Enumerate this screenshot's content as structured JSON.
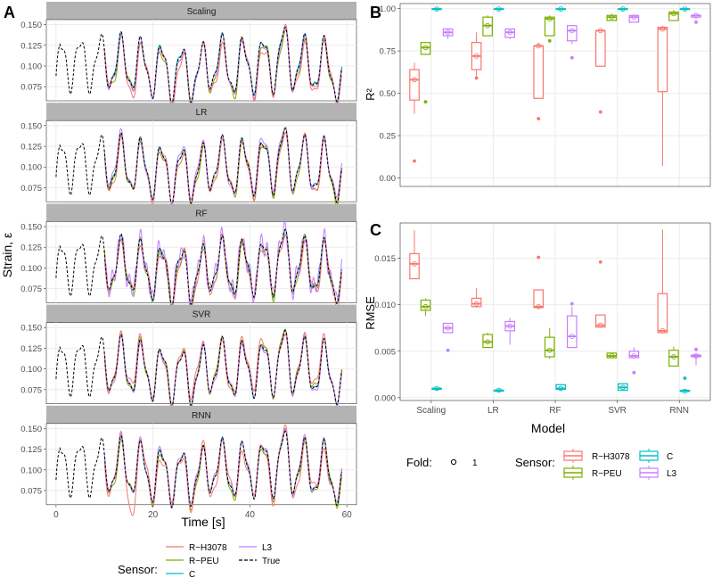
{
  "colors": {
    "rh3078": "#F8766D",
    "rpeu": "#7CAE00",
    "c": "#00BFC4",
    "l3": "#C77CFF",
    "true": "#000000",
    "strip_bg": "#B3B3B3",
    "grid": "#EBEBEB",
    "border": "#333333"
  },
  "chart_data": [
    {
      "panel_label": "A",
      "type": "line",
      "facets": [
        "Scaling",
        "LR",
        "RF",
        "SVR",
        "RNN"
      ],
      "xlabel": "Time [s]",
      "ylabel": "Strain, ε",
      "xlim": [
        -2,
        62
      ],
      "ylim": [
        0.058,
        0.156
      ],
      "x_ticks": [
        "0",
        "20",
        "40",
        "60"
      ],
      "x_tick_values": [
        0,
        20,
        40,
        60
      ],
      "y_ticks": [
        "0.075",
        "0.100",
        "0.125",
        "0.150"
      ],
      "y_tick_values": [
        0.075,
        0.1,
        0.125,
        0.15
      ],
      "true_range": [
        0,
        59
      ],
      "prediction_range": [
        10,
        59
      ],
      "series_names": [
        "R−H3078",
        "R−PEU",
        "C",
        "L3",
        "True"
      ]
    },
    {
      "panel_label": "B",
      "type": "box",
      "xlabel": "",
      "ylabel": "R²",
      "ylim": [
        -0.05,
        1.03
      ],
      "y_ticks": [
        "0.00",
        "0.25",
        "0.50",
        "0.75",
        "1.00"
      ],
      "y_tick_values": [
        0.0,
        0.25,
        0.5,
        0.75,
        1.0
      ],
      "categories": [
        "Scaling",
        "LR",
        "RF",
        "SVR",
        "RNN"
      ],
      "series": [
        {
          "name": "R−H3078",
          "boxes": [
            {
              "min": 0.38,
              "q1": 0.46,
              "median": 0.58,
              "q3": 0.64,
              "max": 0.68,
              "outliers": [
                0.1
              ]
            },
            {
              "min": 0.6,
              "q1": 0.64,
              "median": 0.72,
              "q3": 0.8,
              "max": 0.86,
              "outliers": [
                0.59
              ]
            },
            {
              "min": 0.47,
              "q1": 0.47,
              "median": 0.78,
              "q3": 0.78,
              "max": 0.8,
              "outliers": [
                0.35
              ]
            },
            {
              "min": 0.66,
              "q1": 0.66,
              "median": 0.87,
              "q3": 0.87,
              "max": 0.87,
              "outliers": [
                0.39
              ]
            },
            {
              "min": 0.07,
              "q1": 0.51,
              "median": 0.88,
              "q3": 0.89,
              "max": 0.9,
              "outliers": []
            }
          ]
        },
        {
          "name": "R−PEU",
          "boxes": [
            {
              "min": 0.73,
              "q1": 0.73,
              "median": 0.77,
              "q3": 0.8,
              "max": 0.8,
              "outliers": [
                0.45
              ]
            },
            {
              "min": 0.84,
              "q1": 0.84,
              "median": 0.9,
              "q3": 0.95,
              "max": 0.96,
              "outliers": []
            },
            {
              "min": 0.84,
              "q1": 0.84,
              "median": 0.94,
              "q3": 0.95,
              "max": 0.96,
              "outliers": [
                0.81
              ]
            },
            {
              "min": 0.93,
              "q1": 0.93,
              "median": 0.95,
              "q3": 0.96,
              "max": 0.97,
              "outliers": []
            },
            {
              "min": 0.93,
              "q1": 0.93,
              "median": 0.97,
              "q3": 0.98,
              "max": 0.99,
              "outliers": []
            }
          ]
        },
        {
          "name": "C",
          "boxes": [
            {
              "min": 0.99,
              "q1": 0.995,
              "median": 0.998,
              "q3": 0.999,
              "max": 1.0,
              "outliers": []
            },
            {
              "min": 0.99,
              "q1": 0.995,
              "median": 0.998,
              "q3": 0.999,
              "max": 1.0,
              "outliers": []
            },
            {
              "min": 0.99,
              "q1": 0.995,
              "median": 0.998,
              "q3": 0.999,
              "max": 1.0,
              "outliers": []
            },
            {
              "min": 0.99,
              "q1": 0.995,
              "median": 0.998,
              "q3": 0.999,
              "max": 1.0,
              "outliers": []
            },
            {
              "min": 0.99,
              "q1": 0.995,
              "median": 0.998,
              "q3": 0.999,
              "max": 1.0,
              "outliers": []
            }
          ]
        },
        {
          "name": "L3",
          "boxes": [
            {
              "min": 0.82,
              "q1": 0.84,
              "median": 0.86,
              "q3": 0.88,
              "max": 0.88,
              "outliers": []
            },
            {
              "min": 0.82,
              "q1": 0.83,
              "median": 0.86,
              "q3": 0.88,
              "max": 0.88,
              "outliers": []
            },
            {
              "min": 0.79,
              "q1": 0.81,
              "median": 0.87,
              "q3": 0.9,
              "max": 0.9,
              "outliers": [
                0.71
              ]
            },
            {
              "min": 0.92,
              "q1": 0.92,
              "median": 0.95,
              "q3": 0.96,
              "max": 0.96,
              "outliers": []
            },
            {
              "min": 0.94,
              "q1": 0.95,
              "median": 0.96,
              "q3": 0.96,
              "max": 0.96,
              "outliers": [
                0.92
              ]
            }
          ]
        }
      ]
    },
    {
      "panel_label": "C",
      "type": "box",
      "xlabel": "Model",
      "ylabel": "RMSE",
      "ylim": [
        -0.0003,
        0.0188
      ],
      "y_ticks": [
        "0.000",
        "0.005",
        "0.010",
        "0.015"
      ],
      "y_tick_values": [
        0.0,
        0.005,
        0.01,
        0.015
      ],
      "categories": [
        "Scaling",
        "LR",
        "RF",
        "SVR",
        "RNN"
      ],
      "series": [
        {
          "name": "R−H3078",
          "boxes": [
            {
              "min": 0.0128,
              "q1": 0.0128,
              "median": 0.0144,
              "q3": 0.0155,
              "max": 0.018,
              "outliers": []
            },
            {
              "min": 0.0097,
              "q1": 0.0098,
              "median": 0.0101,
              "q3": 0.0107,
              "max": 0.0118,
              "outliers": []
            },
            {
              "min": 0.0097,
              "q1": 0.0097,
              "median": 0.0098,
              "q3": 0.0116,
              "max": 0.0116,
              "outliers": [
                0.0151
              ]
            },
            {
              "min": 0.0076,
              "q1": 0.0076,
              "median": 0.0078,
              "q3": 0.0089,
              "max": 0.0089,
              "outliers": [
                0.0146
              ]
            },
            {
              "min": 0.0069,
              "q1": 0.007,
              "median": 0.0072,
              "q3": 0.0112,
              "max": 0.0181,
              "outliers": []
            }
          ]
        },
        {
          "name": "R−PEU",
          "boxes": [
            {
              "min": 0.0088,
              "q1": 0.0094,
              "median": 0.0098,
              "q3": 0.0105,
              "max": 0.0107,
              "outliers": []
            },
            {
              "min": 0.0054,
              "q1": 0.0054,
              "median": 0.006,
              "q3": 0.0068,
              "max": 0.007,
              "outliers": []
            },
            {
              "min": 0.0042,
              "q1": 0.0044,
              "median": 0.0051,
              "q3": 0.0065,
              "max": 0.0075,
              "outliers": []
            },
            {
              "min": 0.0043,
              "q1": 0.0043,
              "median": 0.0045,
              "q3": 0.0048,
              "max": 0.0048,
              "outliers": []
            },
            {
              "min": 0.0034,
              "q1": 0.0034,
              "median": 0.0044,
              "q3": 0.0051,
              "max": 0.0055,
              "outliers": []
            }
          ]
        },
        {
          "name": "C",
          "boxes": [
            {
              "min": 0.0008,
              "q1": 0.0009,
              "median": 0.001,
              "q3": 0.001,
              "max": 0.0011,
              "outliers": []
            },
            {
              "min": 0.0007,
              "q1": 0.0007,
              "median": 0.0008,
              "q3": 0.0008,
              "max": 0.0009,
              "outliers": []
            },
            {
              "min": 0.0008,
              "q1": 0.0009,
              "median": 0.001,
              "q3": 0.0014,
              "max": 0.0014,
              "outliers": []
            },
            {
              "min": 0.0008,
              "q1": 0.0008,
              "median": 0.0011,
              "q3": 0.0015,
              "max": 0.0015,
              "outliers": []
            },
            {
              "min": 0.0007,
              "q1": 0.0007,
              "median": 0.0007,
              "q3": 0.0008,
              "max": 0.0008,
              "outliers": [
                0.0021
              ]
            }
          ]
        },
        {
          "name": "L3",
          "boxes": [
            {
              "min": 0.007,
              "q1": 0.007,
              "median": 0.0075,
              "q3": 0.008,
              "max": 0.008,
              "outliers": [
                0.0051
              ]
            },
            {
              "min": 0.0057,
              "q1": 0.0072,
              "median": 0.0077,
              "q3": 0.0082,
              "max": 0.0086,
              "outliers": []
            },
            {
              "min": 0.0054,
              "q1": 0.0054,
              "median": 0.0066,
              "q3": 0.0088,
              "max": 0.0098,
              "outliers": [
                0.0101
              ]
            },
            {
              "min": 0.0043,
              "q1": 0.0043,
              "median": 0.0045,
              "q3": 0.005,
              "max": 0.0054,
              "outliers": [
                0.0027
              ]
            },
            {
              "min": 0.0035,
              "q1": 0.0044,
              "median": 0.0045,
              "q3": 0.0046,
              "max": 0.0046,
              "outliers": [
                0.0052
              ]
            }
          ]
        }
      ]
    }
  ],
  "legend_A": {
    "title": "Sensor:",
    "items": [
      {
        "label": "R−H3078",
        "key": "rh3078",
        "dash": false
      },
      {
        "label": "R−PEU",
        "key": "rpeu",
        "dash": false
      },
      {
        "label": "C",
        "key": "c",
        "dash": false
      },
      {
        "label": "L3",
        "key": "l3",
        "dash": false
      },
      {
        "label": "True",
        "key": "true",
        "dash": true
      }
    ]
  },
  "legend_fold": {
    "title": "Fold:",
    "label": "1"
  },
  "legend_sensor": {
    "title": "Sensor:",
    "items": [
      {
        "label": "R−H3078",
        "key": "rh3078"
      },
      {
        "label": "R−PEU",
        "key": "rpeu"
      },
      {
        "label": "C",
        "key": "c"
      },
      {
        "label": "L3",
        "key": "l3"
      }
    ]
  }
}
